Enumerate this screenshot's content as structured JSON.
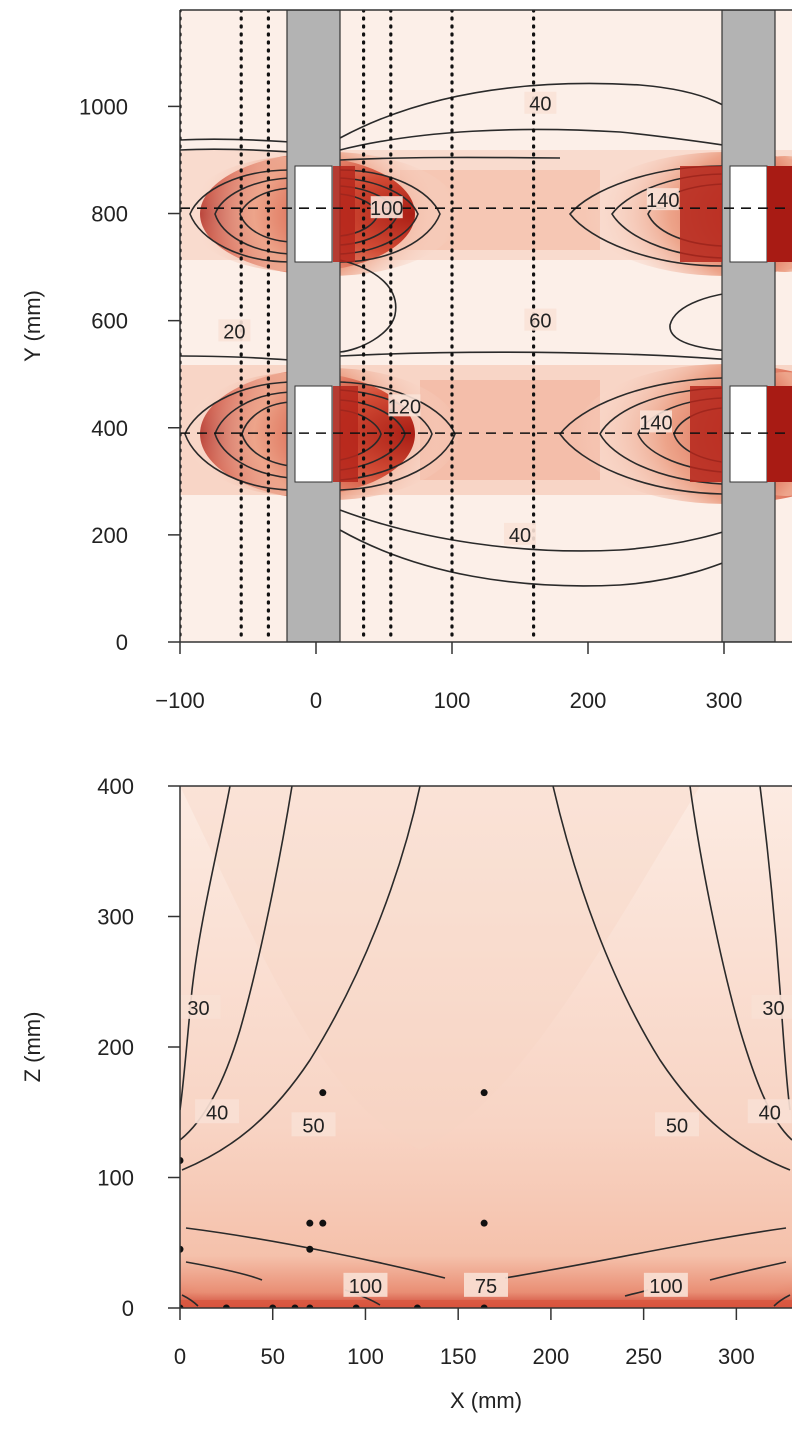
{
  "chart_data": [
    {
      "type": "heatmap",
      "xlabel": "",
      "ylabel": "Y (mm)",
      "xlim": [
        -100,
        350
      ],
      "ylim": [
        0,
        1180
      ],
      "xticks": [
        "−100",
        "0",
        "100",
        "200",
        "300"
      ],
      "yticks": [
        "0",
        "200",
        "400",
        "600",
        "800",
        "1000"
      ],
      "colormap": [
        "#fdf1ec",
        "#f6c7b5",
        "#e0705a",
        "#b01e18"
      ],
      "grey_columns_x": [
        [
          -20,
          20
        ],
        [
          305,
          345
        ]
      ],
      "white_openings": [
        {
          "x": [
            -15,
            15
          ],
          "y": [
            710,
            900
          ]
        },
        {
          "x": [
            310,
            340
          ],
          "y": [
            300,
            480
          ]
        },
        {
          "x": [
            -15,
            15
          ],
          "y": [
            300,
            480
          ]
        },
        {
          "x": [
            310,
            340
          ],
          "y": [
            710,
            900
          ]
        }
      ],
      "dotted_x_lines": [
        -100,
        -55,
        -35,
        35,
        55,
        100,
        160
      ],
      "dashed_y_lines": [
        810,
        390
      ],
      "contour_labels": [
        {
          "text": "40",
          "x": 165,
          "y": 1005
        },
        {
          "text": "60",
          "x": 165,
          "y": 600
        },
        {
          "text": "40",
          "x": 150,
          "y": 200
        },
        {
          "text": "20",
          "x": -60,
          "y": 580
        },
        {
          "text": "140",
          "x": 255,
          "y": 825
        },
        {
          "text": "140",
          "x": 250,
          "y": 410
        },
        {
          "text": "100",
          "x": 52,
          "y": 810
        },
        {
          "text": "120",
          "x": 65,
          "y": 440
        }
      ]
    },
    {
      "type": "heatmap",
      "xlabel": "X (mm)",
      "ylabel": "Z (mm)",
      "xlim": [
        0,
        330
      ],
      "ylim": [
        0,
        400
      ],
      "xticks": [
        "0",
        "50",
        "100",
        "150",
        "200",
        "250",
        "300"
      ],
      "yticks": [
        "0",
        "100",
        "200",
        "300",
        "400"
      ],
      "contour_labels": [
        {
          "text": "30",
          "x": 10,
          "y": 230
        },
        {
          "text": "40",
          "x": 20,
          "y": 150
        },
        {
          "text": "50",
          "x": 72,
          "y": 140
        },
        {
          "text": "75",
          "x": 165,
          "y": 17
        },
        {
          "text": "100",
          "x": 100,
          "y": 17
        },
        {
          "text": "100",
          "x": 262,
          "y": 17
        },
        {
          "text": "50",
          "x": 268,
          "y": 140
        },
        {
          "text": "40",
          "x": 318,
          "y": 150
        },
        {
          "text": "30",
          "x": 320,
          "y": 230
        }
      ],
      "measurement_points": [
        {
          "x": 77,
          "y": 165
        },
        {
          "x": 164,
          "y": 165
        },
        {
          "x": 0,
          "y": 113
        },
        {
          "x": 70,
          "y": 65
        },
        {
          "x": 77,
          "y": 65
        },
        {
          "x": 164,
          "y": 65
        },
        {
          "x": 0,
          "y": 45
        },
        {
          "x": 70,
          "y": 45
        },
        {
          "x": 0,
          "y": 0
        },
        {
          "x": 25,
          "y": 0
        },
        {
          "x": 50,
          "y": 0
        },
        {
          "x": 62,
          "y": 0
        },
        {
          "x": 70,
          "y": 0
        },
        {
          "x": 95,
          "y": 0
        },
        {
          "x": 128,
          "y": 0
        },
        {
          "x": 164,
          "y": 0
        }
      ]
    }
  ]
}
